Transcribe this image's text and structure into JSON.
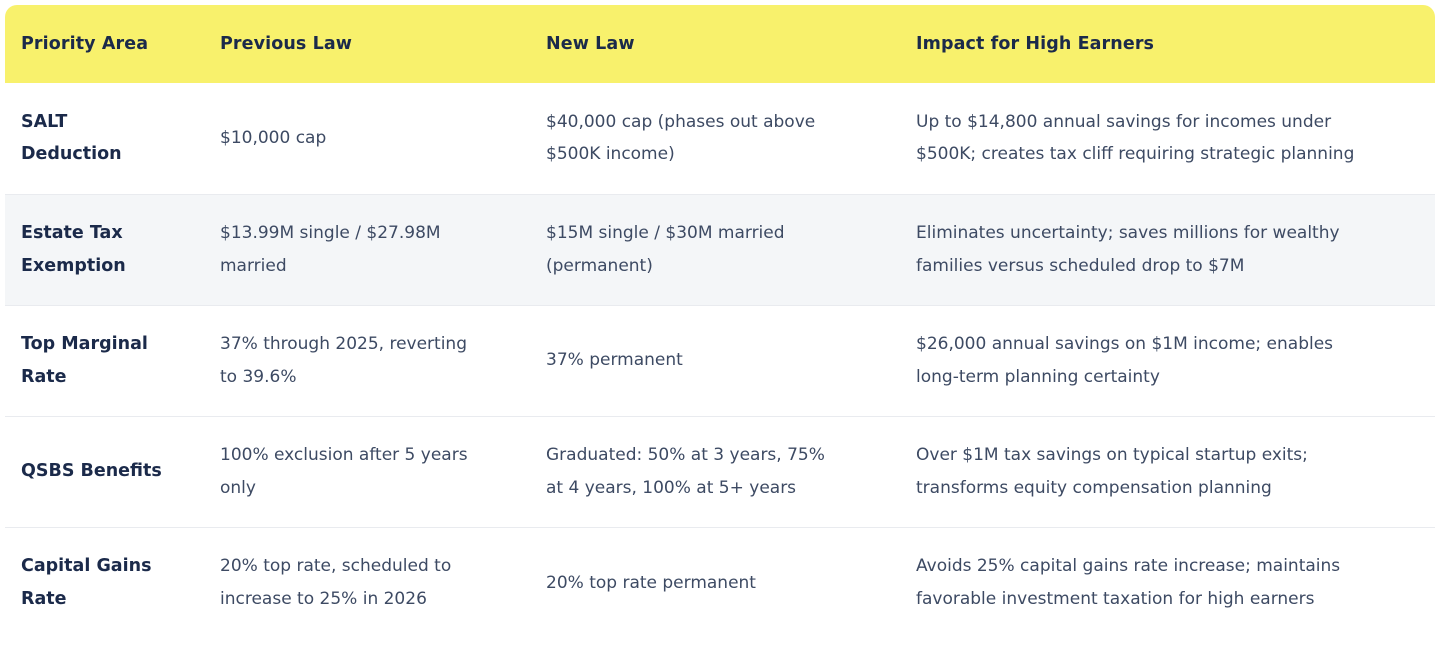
{
  "colors": {
    "header_background": "#f8f16c",
    "header_text": "#1b2a4a",
    "row_label_text": "#1b2a4a",
    "body_text": "#3d4a63",
    "shaded_row_background": "#f4f6f8",
    "divider": "#e9ebef"
  },
  "table": {
    "columns": [
      {
        "label": "Priority Area"
      },
      {
        "label": "Previous Law"
      },
      {
        "label": "New Law"
      },
      {
        "label": "Impact for High Earners"
      }
    ],
    "rows": [
      {
        "area": "SALT\nDeduction",
        "previous": "$10,000 cap",
        "new": "$40,000 cap (phases out above\n$500K income)",
        "impact": "Up to $14,800 annual savings for incomes under\n$500K; creates tax cliff requiring strategic planning",
        "shaded": false
      },
      {
        "area": "Estate Tax\nExemption",
        "previous": "$13.99M single / $27.98M\nmarried",
        "new": "$15M single / $30M married\n(permanent)",
        "impact": "Eliminates uncertainty; saves millions for wealthy\nfamilies versus scheduled drop to $7M",
        "shaded": true
      },
      {
        "area": "Top Marginal\nRate",
        "previous": "37% through 2025, reverting\nto 39.6%",
        "new": "37% permanent",
        "impact": "$26,000 annual savings on $1M income; enables\nlong-term planning certainty",
        "shaded": false
      },
      {
        "area": "QSBS Benefits",
        "previous": "100% exclusion after 5 years\nonly",
        "new": "Graduated: 50% at 3 years, 75%\nat 4 years, 100% at 5+ years",
        "impact": "Over $1M tax savings on typical startup exits;\ntransforms equity compensation planning",
        "shaded": false
      },
      {
        "area": "Capital Gains\nRate",
        "previous": "20% top rate, scheduled to\nincrease to 25% in 2026",
        "new": "20% top rate permanent",
        "impact": "Avoids 25% capital gains rate increase; maintains\nfavorable investment taxation for high earners",
        "shaded": false
      }
    ]
  }
}
